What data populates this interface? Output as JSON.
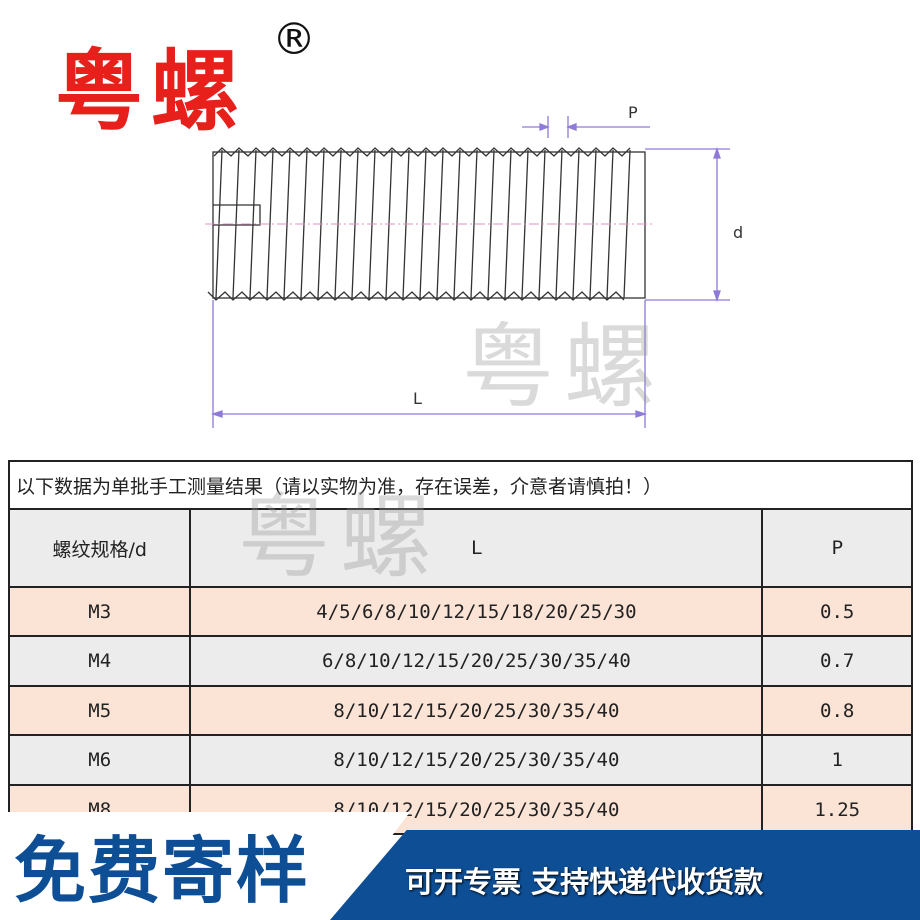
{
  "brand": {
    "logo": "粤螺",
    "registered": "®",
    "watermark": "粤螺"
  },
  "drawing": {
    "labels": {
      "pitch": "P",
      "diameter": "d",
      "length": "L"
    },
    "dimension_color": "#8f7ad9"
  },
  "table": {
    "note": "以下数据为单批手工测量结果（请以实物为准，存在误差，介意者请慎拍！）",
    "headers": [
      "螺纹规格/d",
      "L",
      "P"
    ],
    "rows": [
      {
        "spec": "M3",
        "L": "4/5/6/8/10/12/15/18/20/25/30",
        "P": "0.5"
      },
      {
        "spec": "M4",
        "L": "6/8/10/12/15/20/25/30/35/40",
        "P": "0.7"
      },
      {
        "spec": "M5",
        "L": "8/10/12/15/20/25/30/35/40",
        "P": "0.8"
      },
      {
        "spec": "M6",
        "L": "8/10/12/15/20/25/30/35/40",
        "P": "1"
      },
      {
        "spec": "M8",
        "L": "8/10/12/15/20/25/30/35/40",
        "P": "1.25"
      }
    ]
  },
  "banner": {
    "free_sample": "免费寄样",
    "services": "可开专票 支持快递代收货款",
    "blue": "#0e4e95",
    "brand_red": "#e8201c"
  }
}
